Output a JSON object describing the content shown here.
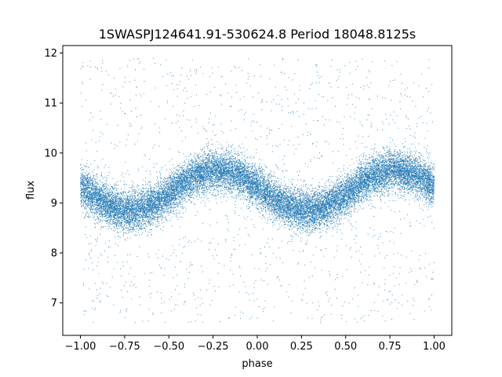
{
  "chart_data": {
    "type": "scatter",
    "title": "1SWASPJ124641.91-530624.8 Period 18048.8125s",
    "xlabel": "phase",
    "ylabel": "flux",
    "xlim": [
      -1.1,
      1.1
    ],
    "ylim": [
      6.35,
      12.15
    ],
    "xticks": [
      -1.0,
      -0.75,
      -0.5,
      -0.25,
      0.0,
      0.25,
      0.5,
      0.75,
      1.0
    ],
    "xtick_labels": [
      "−1.00",
      "−0.75",
      "−0.50",
      "−0.25",
      "0.00",
      "0.25",
      "0.50",
      "0.75",
      "1.00"
    ],
    "yticks": [
      7,
      8,
      9,
      10,
      11,
      12
    ],
    "ytick_labels": [
      "7",
      "8",
      "9",
      "10",
      "11",
      "12"
    ],
    "grid": false,
    "marker_color": "#1f77b4",
    "series": [
      {
        "model": "sinusoid",
        "points_per_cycle": 10000,
        "x_range": [
          -1.0,
          1.0
        ],
        "mean_flux": 9.25,
        "amplitude": 0.4,
        "peak_phase": -0.22,
        "core_spread": 0.2,
        "outlier_fraction": 0.07,
        "outlier_range": [
          6.6,
          11.9
        ]
      }
    ]
  }
}
